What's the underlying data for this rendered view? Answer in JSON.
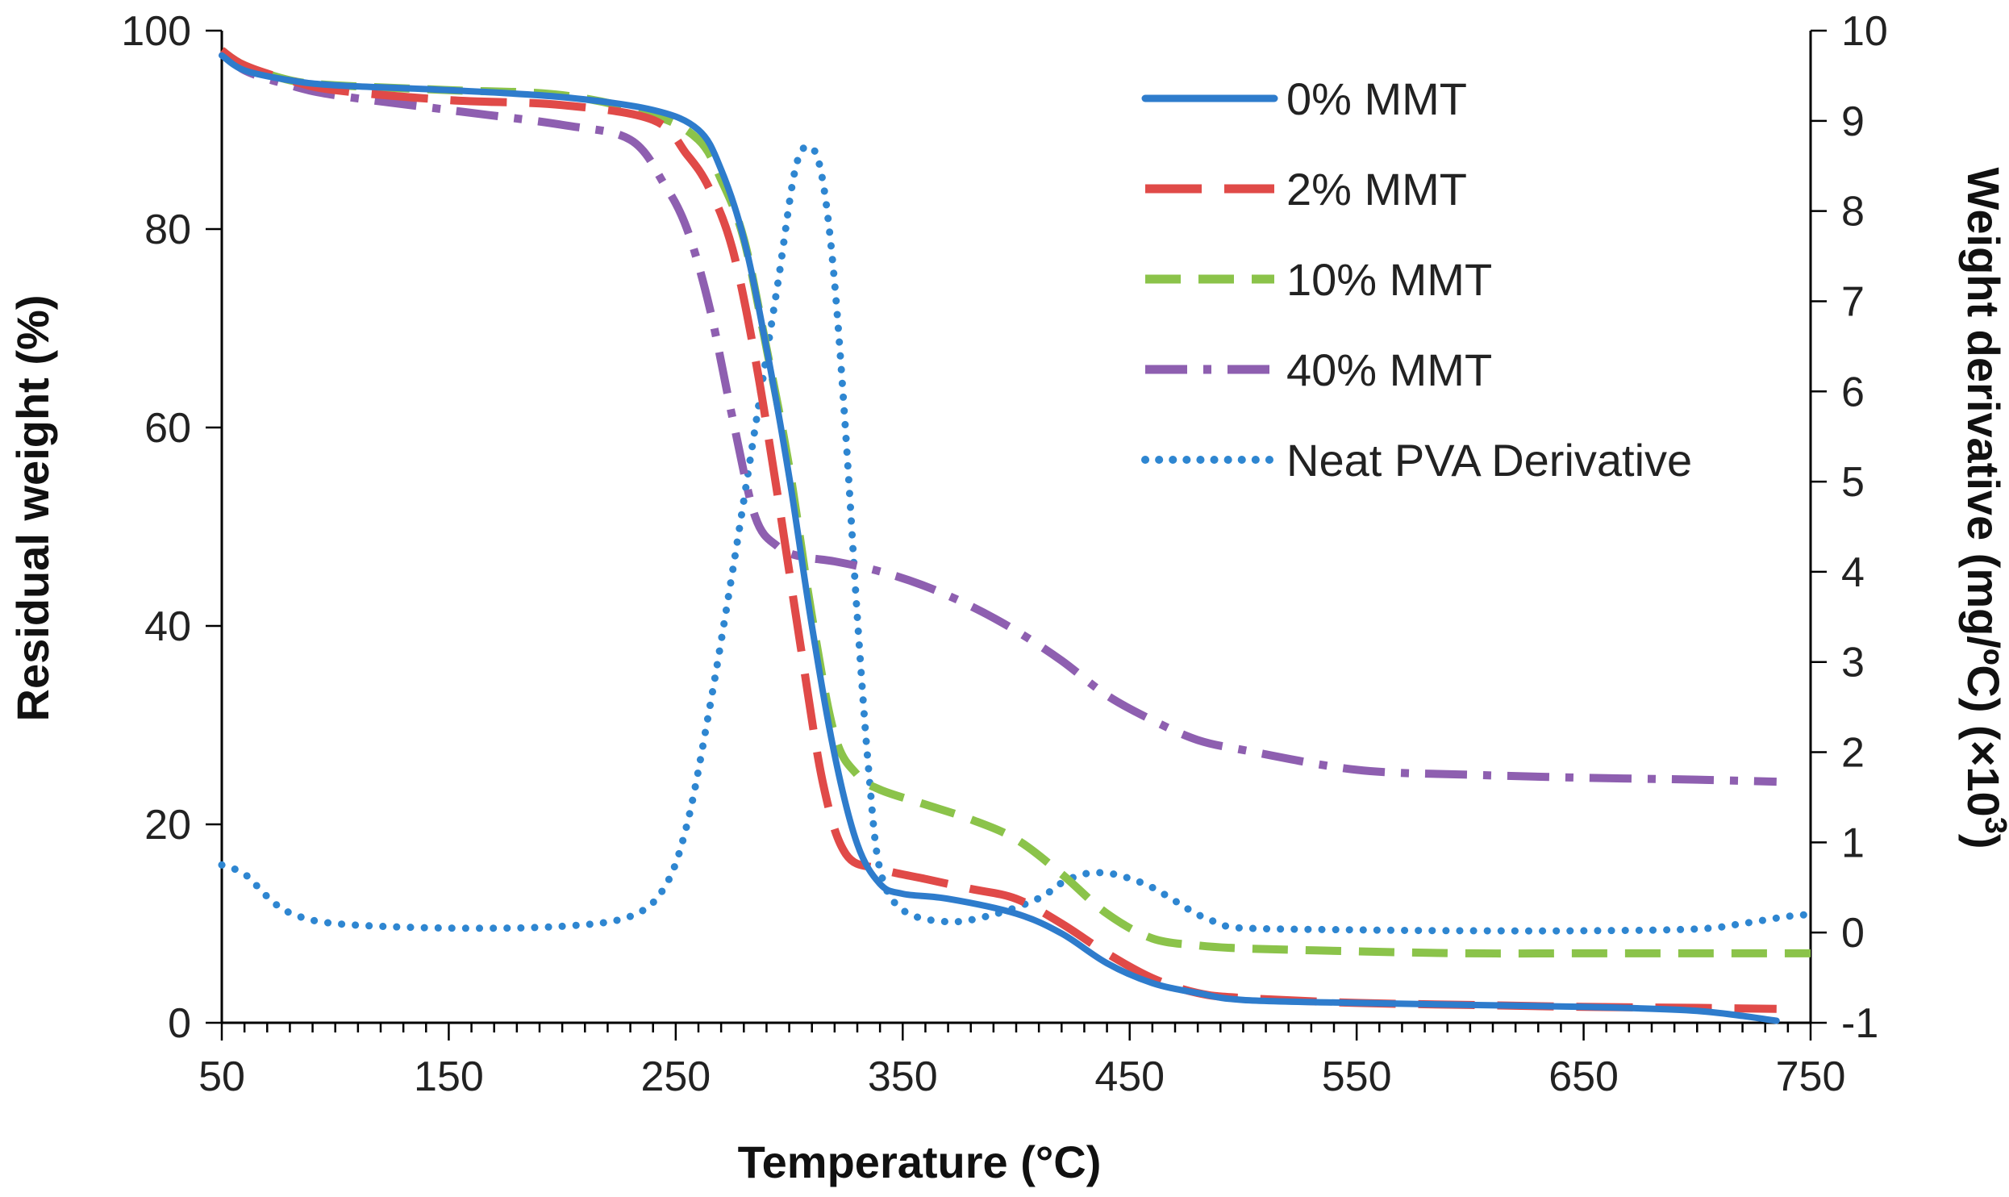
{
  "chart_data": {
    "type": "line",
    "title": "",
    "xlabel": "Temperature (°C)",
    "ylabel": "Residual weight (%)",
    "y2label_main": "Weight derivative (mg/ºC) (×10",
    "y2label_sup": "3",
    "y2label_end": ")",
    "xlim": [
      50,
      750
    ],
    "ylim": [
      0,
      100
    ],
    "y2lim": [
      -1,
      10
    ],
    "x_ticks": [
      "50",
      "150",
      "250",
      "350",
      "450",
      "550",
      "650",
      "750"
    ],
    "y_ticks": [
      "0",
      "20",
      "40",
      "60",
      "80",
      "100"
    ],
    "y2_ticks": [
      "-1",
      "0",
      "1",
      "2",
      "3",
      "4",
      "5",
      "6",
      "7",
      "8",
      "9",
      "10"
    ],
    "grid": false,
    "legend_position": "top-right",
    "series": [
      {
        "name": "0% MMT",
        "axis": "left",
        "color": "#2e7ccc",
        "dash": "solid",
        "x": [
          50,
          60,
          80,
          100,
          150,
          200,
          240,
          260,
          270,
          280,
          290,
          300,
          310,
          320,
          330,
          340,
          350,
          370,
          400,
          420,
          440,
          460,
          480,
          500,
          550,
          600,
          650,
          700,
          735
        ],
        "y": [
          97.5,
          96,
          95,
          94.5,
          94,
          93.3,
          92,
          90,
          86,
          79,
          68,
          55,
          40,
          27,
          18,
          14,
          13,
          12.5,
          11,
          9,
          6,
          4,
          3,
          2.3,
          2,
          1.8,
          1.6,
          1.2,
          0.2
        ]
      },
      {
        "name": "2% MMT",
        "axis": "left",
        "color": "#e04a48",
        "dash": "long-dash",
        "x": [
          50,
          60,
          80,
          100,
          150,
          200,
          240,
          255,
          265,
          275,
          285,
          295,
          305,
          315,
          325,
          340,
          360,
          380,
          400,
          420,
          440,
          460,
          480,
          500,
          550,
          600,
          650,
          700,
          735
        ],
        "y": [
          98,
          96.5,
          95,
          94,
          93,
          92.5,
          91,
          87.5,
          84,
          78,
          67,
          53,
          38,
          24,
          17,
          15.5,
          14.5,
          13.5,
          12.5,
          10,
          7,
          4.5,
          3,
          2.5,
          2,
          1.8,
          1.6,
          1.5,
          1.4
        ]
      },
      {
        "name": "10% MMT",
        "axis": "left",
        "color": "#8bc34a",
        "dash": "dash",
        "x": [
          50,
          60,
          80,
          100,
          150,
          200,
          240,
          260,
          270,
          280,
          290,
          300,
          310,
          320,
          330,
          340,
          360,
          380,
          400,
          420,
          440,
          460,
          480,
          500,
          550,
          600,
          650,
          700,
          750
        ],
        "y": [
          98,
          96.5,
          95,
          94.5,
          94,
          93.5,
          91.5,
          89,
          85,
          79,
          68,
          56,
          41,
          29,
          25,
          23.5,
          22,
          20.5,
          18.5,
          15,
          11,
          8.5,
          7.8,
          7.5,
          7.2,
          7,
          7,
          7,
          7
        ]
      },
      {
        "name": "40% MMT",
        "axis": "left",
        "color": "#8e5fb0",
        "dash": "dash-dot",
        "x": [
          50,
          60,
          80,
          100,
          150,
          200,
          230,
          245,
          255,
          265,
          275,
          285,
          295,
          305,
          320,
          340,
          360,
          380,
          400,
          420,
          440,
          460,
          480,
          500,
          550,
          600,
          650,
          700,
          735
        ],
        "y": [
          98,
          96,
          94.5,
          93.5,
          92,
          90.5,
          89,
          84.5,
          80,
          72,
          61,
          51,
          48,
          47,
          46.5,
          45.5,
          44,
          42,
          39.5,
          36.5,
          33,
          30.5,
          28.5,
          27.5,
          25.5,
          25,
          24.7,
          24.5,
          24.3
        ]
      },
      {
        "name": "Neat PVA Derivative",
        "axis": "right",
        "color": "#2e86d1",
        "dash": "dot",
        "x": [
          50,
          60,
          70,
          80,
          100,
          150,
          200,
          230,
          245,
          255,
          265,
          275,
          285,
          295,
          303,
          310,
          315,
          320,
          325,
          330,
          335,
          340,
          350,
          370,
          390,
          410,
          420,
          430,
          440,
          450,
          460,
          470,
          480,
          490,
          500,
          550,
          600,
          650,
          700,
          720,
          740,
          750
        ],
        "y": [
          0.75,
          0.65,
          0.4,
          0.22,
          0.1,
          0.05,
          0.07,
          0.18,
          0.5,
          1.2,
          2.5,
          4.0,
          5.6,
          7.2,
          8.5,
          8.7,
          8.3,
          7.2,
          5.5,
          3.5,
          1.8,
          0.7,
          0.25,
          0.12,
          0.2,
          0.38,
          0.55,
          0.65,
          0.66,
          0.6,
          0.5,
          0.35,
          0.2,
          0.1,
          0.05,
          0.03,
          0.02,
          0.02,
          0.04,
          0.1,
          0.18,
          0.2
        ]
      }
    ]
  }
}
